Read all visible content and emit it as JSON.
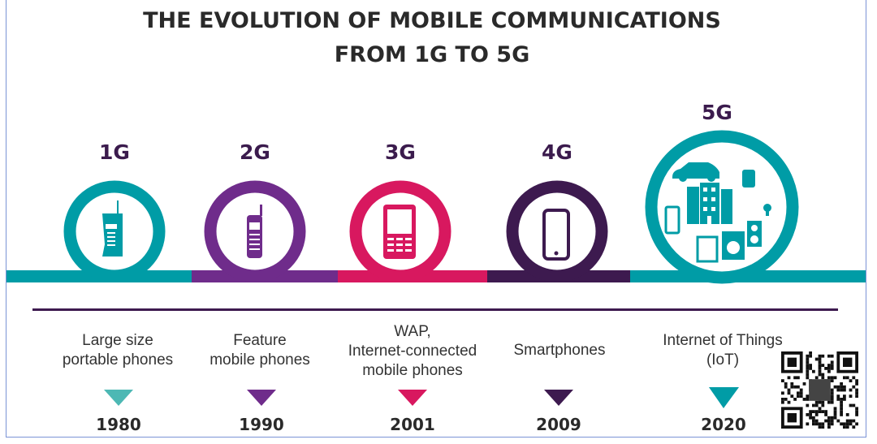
{
  "title": {
    "line1": "THE EVOLUTION OF MOBILE COMMUNICATIONS",
    "line2": "FROM 1G TO 5G"
  },
  "colors": {
    "teal": "#009ca6",
    "purple": "#6f2c8b",
    "pink": "#d8185f",
    "dark_purple": "#3d1a4f"
  },
  "generations": [
    {
      "label": "1G",
      "desc": [
        "Large size",
        "portable phones"
      ],
      "year": "1980",
      "color": "#009ca6",
      "icon": "brick-phone-icon"
    },
    {
      "label": "2G",
      "desc": [
        "Feature",
        "mobile phones"
      ],
      "year": "1990",
      "color": "#6f2c8b",
      "icon": "feature-phone-icon"
    },
    {
      "label": "3G",
      "desc": [
        "WAP,",
        "Internet-connected",
        "mobile phones"
      ],
      "year": "2001",
      "color": "#d8185f",
      "icon": "keypad-phone-icon"
    },
    {
      "label": "4G",
      "desc": [
        "Smartphones"
      ],
      "year": "2009",
      "color": "#3d1a4f",
      "icon": "smartphone-icon"
    },
    {
      "label": "5G",
      "desc": [
        "Internet of Things",
        "(IoT)"
      ],
      "year": "2020",
      "color": "#009ca6",
      "icon": "iot-devices-icon"
    }
  ]
}
